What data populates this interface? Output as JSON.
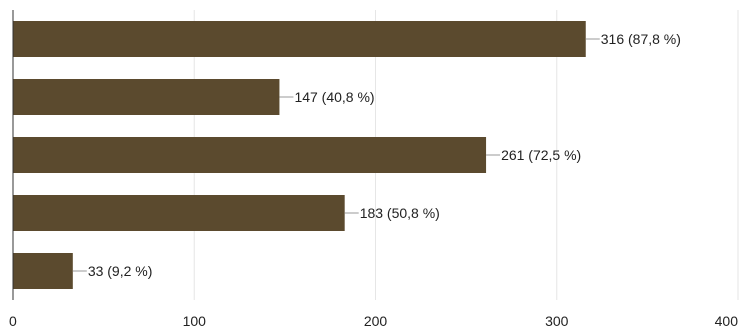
{
  "chart_data": {
    "type": "bar",
    "orientation": "horizontal",
    "categories": [
      "",
      "",
      "",
      "",
      ""
    ],
    "values": [
      316,
      147,
      261,
      183,
      33
    ],
    "data_labels": [
      "316 (87,8 %)",
      "147 (40,8 %)",
      "261 (72,5 %)",
      "183 (50,8 %)",
      "33 (9,2 %)"
    ],
    "xlim": [
      0,
      400
    ],
    "x_ticks": [
      0,
      100,
      200,
      300,
      400
    ],
    "x_tick_labels": [
      "0",
      "100",
      "200",
      "300",
      "400"
    ],
    "grid": "vertical",
    "legend": "none",
    "bar_color": "#5b4a2e",
    "grid_color": "#e6e6e6",
    "axis_color": "#333333",
    "leader_color": "#999999"
  }
}
